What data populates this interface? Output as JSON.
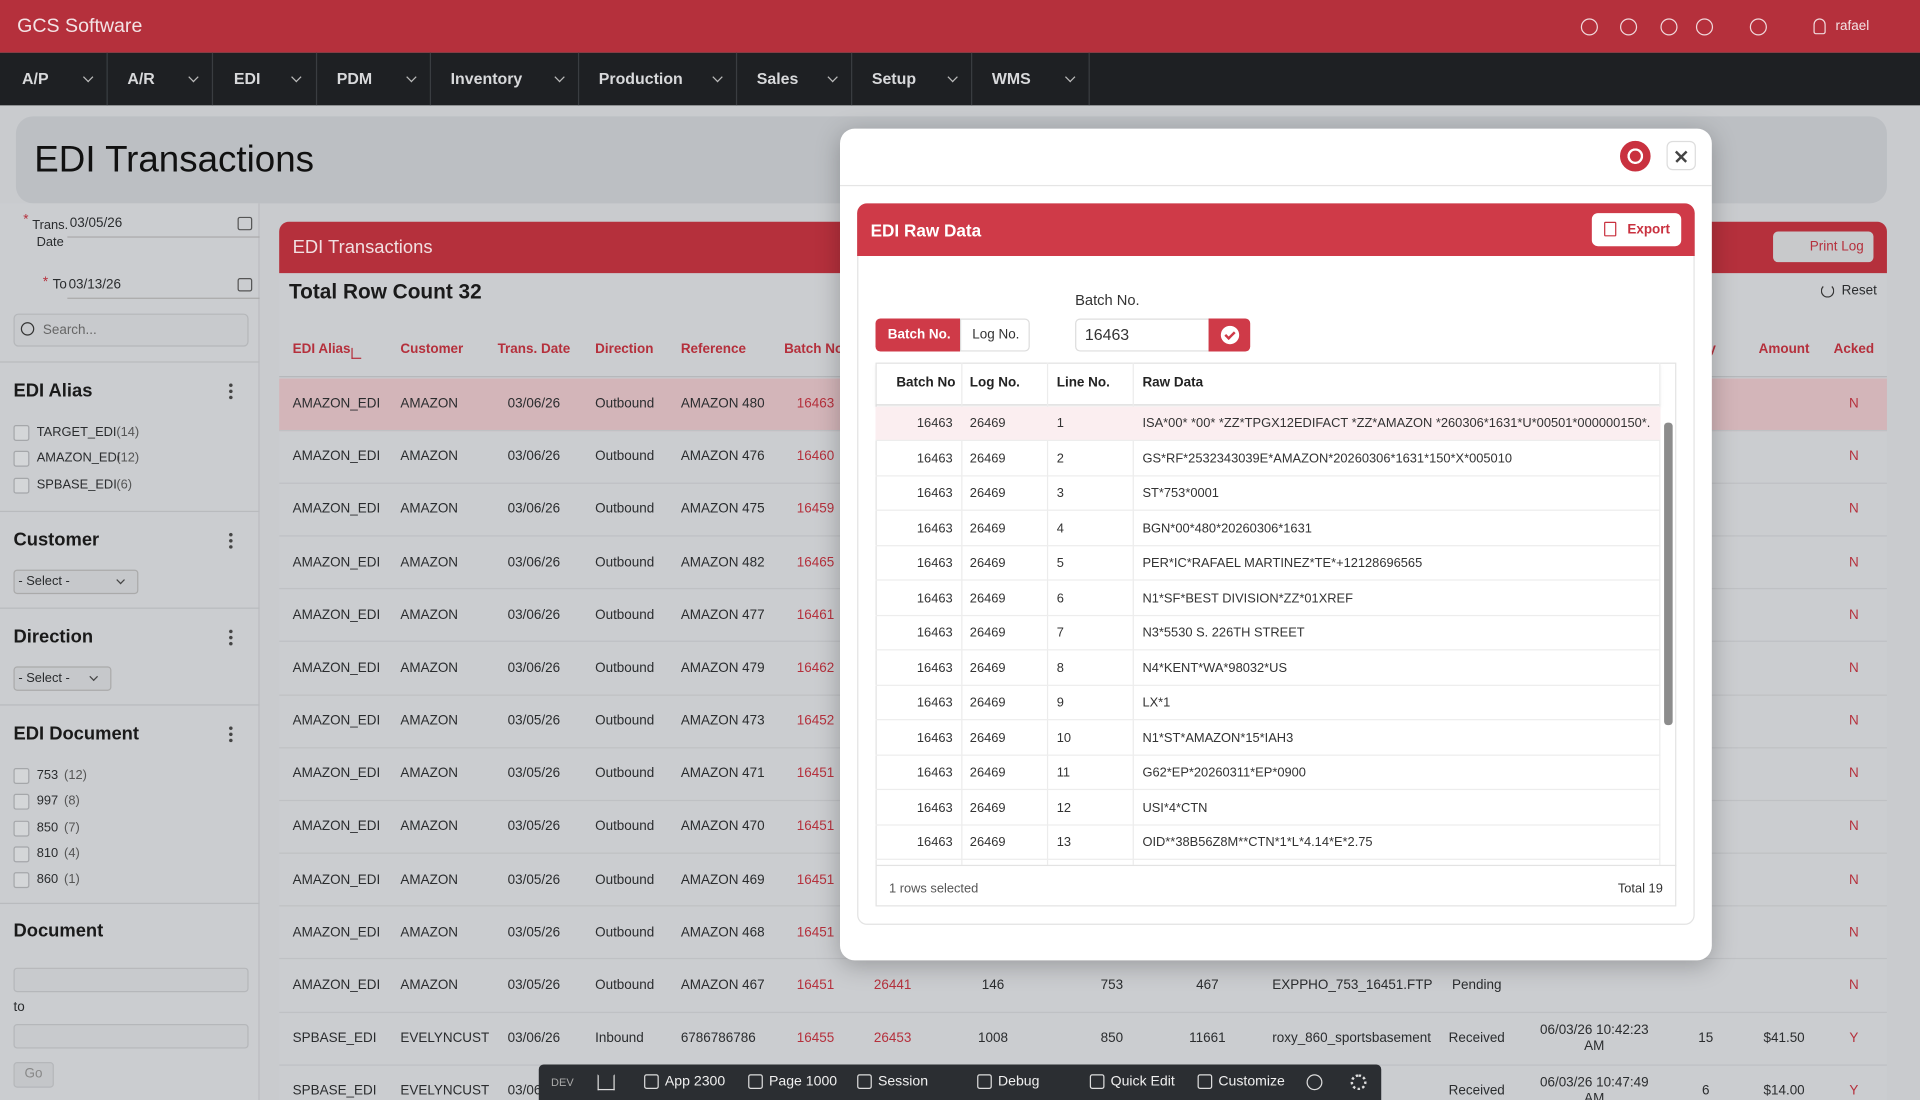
{
  "header": {
    "brand": "GCS Software",
    "user": "rafael"
  },
  "nav": [
    "A/P",
    "A/R",
    "EDI",
    "PDM",
    "Inventory",
    "Production",
    "Sales",
    "Setup",
    "WMS"
  ],
  "page": {
    "title": "EDI Transactions"
  },
  "filters": {
    "required": "*",
    "trans_date_label": "Trans. Date",
    "from": "03/05/26",
    "to_label": "To",
    "to": "03/13/26",
    "search_placeholder": "Search...",
    "groups": [
      {
        "title": "EDI Alias",
        "options": [
          {
            "label": "TARGET_EDI",
            "count": "(14)"
          },
          {
            "label": "AMAZON_EDI",
            "count": "(12)"
          },
          {
            "label": "SPBASE_EDI",
            "count": "(6)"
          }
        ]
      },
      {
        "title": "Customer",
        "select": "- Select -"
      },
      {
        "title": "Direction",
        "select": "- Select -"
      },
      {
        "title": "EDI Document",
        "options": [
          {
            "label": "753",
            "count": "(12)"
          },
          {
            "label": "997",
            "count": "(8)"
          },
          {
            "label": "850",
            "count": "(7)"
          },
          {
            "label": "810",
            "count": "(4)"
          },
          {
            "label": "860",
            "count": "(1)"
          }
        ]
      }
    ],
    "document": {
      "title": "Document",
      "to_label": "to",
      "go": "Go"
    }
  },
  "main": {
    "title": "EDI Transactions",
    "print_log": "Print Log",
    "row_count": "Total Row Count 32",
    "reset": "Reset",
    "columns": [
      "EDI Alias",
      "Customer",
      "Trans. Date",
      "Direction",
      "Reference",
      "Batch No.",
      null,
      null,
      null,
      null,
      null,
      null,
      null,
      "tity",
      "Amount",
      "Acked"
    ],
    "rows": [
      [
        "AMAZON_EDI",
        "AMAZON",
        "03/06/26",
        "Outbound",
        "AMAZON 480",
        "16463",
        null,
        null,
        null,
        null,
        null,
        null,
        null,
        null,
        null,
        "N"
      ],
      [
        "AMAZON_EDI",
        "AMAZON",
        "03/06/26",
        "Outbound",
        "AMAZON 476",
        "16460",
        null,
        null,
        null,
        null,
        null,
        null,
        null,
        null,
        null,
        "N"
      ],
      [
        "AMAZON_EDI",
        "AMAZON",
        "03/06/26",
        "Outbound",
        "AMAZON 475",
        "16459",
        null,
        null,
        null,
        null,
        null,
        null,
        null,
        null,
        null,
        "N"
      ],
      [
        "AMAZON_EDI",
        "AMAZON",
        "03/06/26",
        "Outbound",
        "AMAZON 482",
        "16465",
        null,
        null,
        null,
        null,
        null,
        null,
        null,
        null,
        null,
        "N"
      ],
      [
        "AMAZON_EDI",
        "AMAZON",
        "03/06/26",
        "Outbound",
        "AMAZON 477",
        "16461",
        null,
        null,
        null,
        null,
        null,
        null,
        null,
        null,
        null,
        "N"
      ],
      [
        "AMAZON_EDI",
        "AMAZON",
        "03/06/26",
        "Outbound",
        "AMAZON 479",
        "16462",
        null,
        null,
        null,
        null,
        null,
        null,
        null,
        null,
        null,
        "N"
      ],
      [
        "AMAZON_EDI",
        "AMAZON",
        "03/05/26",
        "Outbound",
        "AMAZON 473",
        "16452",
        null,
        null,
        null,
        null,
        null,
        null,
        null,
        null,
        null,
        "N"
      ],
      [
        "AMAZON_EDI",
        "AMAZON",
        "03/05/26",
        "Outbound",
        "AMAZON 471",
        "16451",
        null,
        null,
        null,
        null,
        null,
        null,
        null,
        null,
        null,
        "N"
      ],
      [
        "AMAZON_EDI",
        "AMAZON",
        "03/05/26",
        "Outbound",
        "AMAZON 470",
        "16451",
        null,
        null,
        null,
        null,
        null,
        null,
        null,
        null,
        null,
        "N"
      ],
      [
        "AMAZON_EDI",
        "AMAZON",
        "03/05/26",
        "Outbound",
        "AMAZON 469",
        "16451",
        null,
        null,
        null,
        null,
        null,
        null,
        null,
        null,
        null,
        "N"
      ],
      [
        "AMAZON_EDI",
        "AMAZON",
        "03/05/26",
        "Outbound",
        "AMAZON 468",
        "16451",
        null,
        null,
        null,
        null,
        null,
        null,
        null,
        null,
        null,
        "N"
      ],
      [
        "AMAZON_EDI",
        "AMAZON",
        "03/05/26",
        "Outbound",
        "AMAZON 467",
        "16451",
        "26441",
        "146",
        "753",
        "467",
        "EXPPHO_753_16451.FTP",
        "Pending",
        null,
        null,
        null,
        "N"
      ],
      [
        "SPBASE_EDI",
        "EVELYNCUST",
        "03/06/26",
        "Inbound",
        "6786786786",
        "16455",
        "26453",
        "1008",
        "850",
        "11661",
        "roxy_860_sportsbasement",
        "Received",
        "06/03/26 10:42:23 AM",
        "15",
        "$41.50",
        "Y"
      ],
      [
        "SPBASE_EDI",
        "EVELYNCUST",
        "03/06/26",
        null,
        null,
        null,
        null,
        null,
        null,
        null,
        null,
        "Received",
        "06/03/26 10:47:49 AM",
        "6",
        "$14.00",
        "Y"
      ]
    ]
  },
  "modal": {
    "title": "EDI Raw Data",
    "export": "Export",
    "tabs": [
      "Batch No.",
      "Log No."
    ],
    "field_label": "Batch No.",
    "field_value": "16463",
    "columns": [
      "Batch No",
      "Log No.",
      "Line No.",
      "Raw Data"
    ],
    "rows": [
      [
        16463,
        26469,
        1,
        "ISA*00* *00* *ZZ*TPGX12EDIFACT *ZZ*AMAZON *260306*1631*U*00501*000000150*..."
      ],
      [
        16463,
        26469,
        2,
        "GS*RF*2532343039E*AMAZON*20260306*1631*150*X*005010"
      ],
      [
        16463,
        26469,
        3,
        "ST*753*0001"
      ],
      [
        16463,
        26469,
        4,
        "BGN*00*480*20260306*1631"
      ],
      [
        16463,
        26469,
        5,
        "PER*IC*RAFAEL MARTINEZ*TE*+12128696565"
      ],
      [
        16463,
        26469,
        6,
        "N1*SF*BEST DIVISION*ZZ*01XREF"
      ],
      [
        16463,
        26469,
        7,
        "N3*5530 S. 226TH STREET"
      ],
      [
        16463,
        26469,
        8,
        "N4*KENT*WA*98032*US"
      ],
      [
        16463,
        26469,
        9,
        "LX*1"
      ],
      [
        16463,
        26469,
        10,
        "N1*ST*AMAZON*15*IAH3"
      ],
      [
        16463,
        26469,
        11,
        "G62*EP*20260311*EP*0900"
      ],
      [
        16463,
        26469,
        12,
        "USI*4*CTN"
      ],
      [
        16463,
        26469,
        13,
        "OID**38B56Z8M**CTN*1*L*4.14*E*2.75"
      ]
    ],
    "selected": "1 rows selected",
    "total": "Total 19"
  },
  "toolbar": [
    "DEV",
    "App 2300",
    "Page 1000",
    "Session",
    "Debug",
    "Quick Edit",
    "Customize"
  ]
}
